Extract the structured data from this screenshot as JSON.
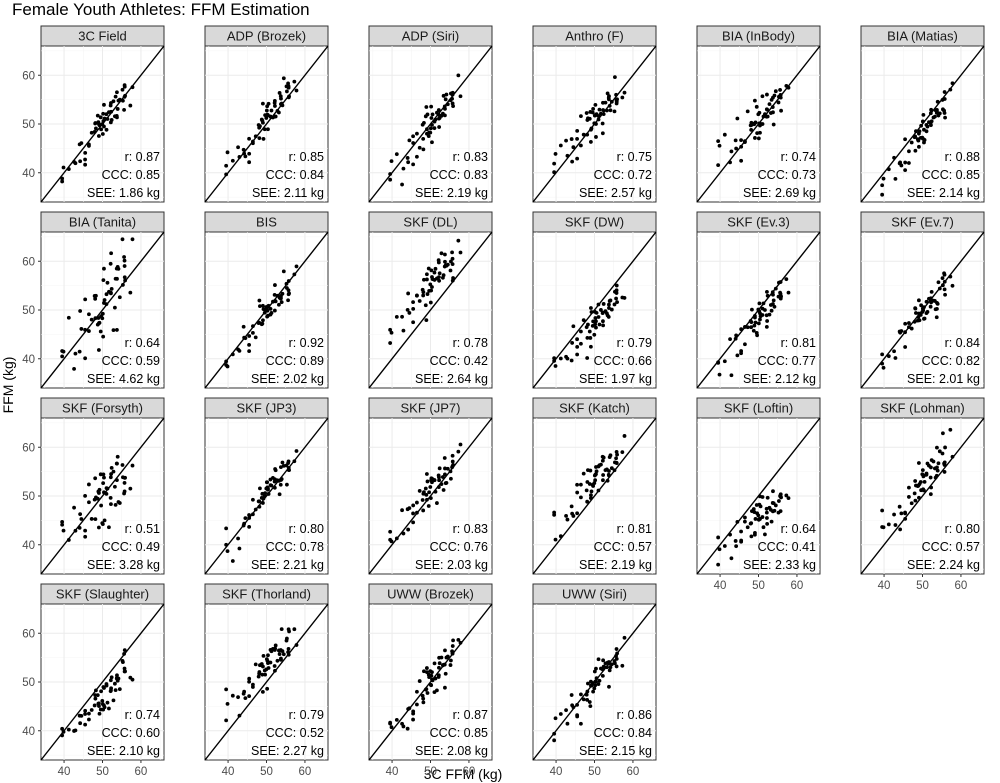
{
  "chart_data": {
    "type": "scatter",
    "title": "Female Youth Athletes: FFM Estimation",
    "xlabel": "3C FFM (kg)",
    "ylabel": "FFM (kg)",
    "xlim": [
      34,
      66
    ],
    "ylim": [
      34,
      66
    ],
    "xticks": [
      40,
      50,
      60
    ],
    "yticks": [
      40,
      50,
      60
    ],
    "grid": true,
    "reference_line": "identity",
    "panels": [
      {
        "label": "3C Field",
        "r": "r: 0.87",
        "ccc": "CCC: 0.85",
        "see": "SEE: 1.86 kg",
        "offset": 0.2,
        "noise": 1.9,
        "stretch": 1.0
      },
      {
        "label": "ADP (Brozek)",
        "r": "r: 0.85",
        "ccc": "CCC: 0.84",
        "see": "SEE: 2.11 kg",
        "offset": 0.8,
        "noise": 2.1,
        "stretch": 1.0
      },
      {
        "label": "ADP (Siri)",
        "r": "r: 0.83",
        "ccc": "CCC: 0.83",
        "see": "SEE: 2.19 kg",
        "offset": 0.3,
        "noise": 2.2,
        "stretch": 1.0
      },
      {
        "label": "Anthro (F)",
        "r": "r: 0.75",
        "ccc": "CCC: 0.72",
        "see": "SEE: 2.57 kg",
        "offset": 1.6,
        "noise": 2.6,
        "stretch": 0.85
      },
      {
        "label": "BIA (InBody)",
        "r": "r: 0.74",
        "ccc": "CCC: 0.73",
        "see": "SEE: 2.69 kg",
        "offset": 1.0,
        "noise": 2.7,
        "stretch": 0.8
      },
      {
        "label": "BIA (Matias)",
        "r": "r: 0.88",
        "ccc": "CCC: 0.85",
        "see": "SEE: 2.14 kg",
        "offset": -1.6,
        "noise": 2.0,
        "stretch": 1.05
      },
      {
        "label": "BIA (Tanita)",
        "r": "r: 0.64",
        "ccc": "CCC: 0.59",
        "see": "SEE: 4.62 kg",
        "offset": 2.0,
        "noise": 4.6,
        "stretch": 1.1
      },
      {
        "label": "BIS",
        "r": "r: 0.92",
        "ccc": "CCC: 0.89",
        "see": "SEE: 2.02 kg",
        "offset": -0.8,
        "noise": 2.0,
        "stretch": 1.05
      },
      {
        "label": "SKF (DL)",
        "r": "r: 0.78",
        "ccc": "CCC: 0.42",
        "see": "SEE: 2.64 kg",
        "offset": 5.5,
        "noise": 2.6,
        "stretch": 0.9
      },
      {
        "label": "SKF (DW)",
        "r": "r: 0.79",
        "ccc": "CCC: 0.66",
        "see": "SEE: 1.97 kg",
        "offset": -2.2,
        "noise": 2.0,
        "stretch": 0.85
      },
      {
        "label": "SKF (Ev.3)",
        "r": "r: 0.81",
        "ccc": "CCC: 0.77",
        "see": "SEE: 2.12 kg",
        "offset": -1.2,
        "noise": 2.1,
        "stretch": 0.95
      },
      {
        "label": "SKF (Ev.7)",
        "r": "r: 0.84",
        "ccc": "CCC: 0.82",
        "see": "SEE: 2.01 kg",
        "offset": -0.6,
        "noise": 2.0,
        "stretch": 0.95
      },
      {
        "label": "SKF (Forsyth)",
        "r": "r: 0.51",
        "ccc": "CCC: 0.49",
        "see": "SEE: 3.28 kg",
        "offset": 0.8,
        "noise": 3.3,
        "stretch": 0.7
      },
      {
        "label": "SKF (JP3)",
        "r": "r: 0.80",
        "ccc": "CCC: 0.78",
        "see": "SEE: 2.21 kg",
        "offset": 0.6,
        "noise": 2.2,
        "stretch": 0.9
      },
      {
        "label": "SKF (JP7)",
        "r": "r: 0.83",
        "ccc": "CCC: 0.76",
        "see": "SEE: 2.03 kg",
        "offset": 1.2,
        "noise": 2.0,
        "stretch": 0.9
      },
      {
        "label": "SKF (Katch)",
        "r": "r: 0.81",
        "ccc": "CCC: 0.57",
        "see": "SEE: 2.19 kg",
        "offset": 3.2,
        "noise": 2.2,
        "stretch": 0.9
      },
      {
        "label": "SKF (Loftin)",
        "r": "r: 0.64",
        "ccc": "CCC: 0.41",
        "see": "SEE: 2.33 kg",
        "offset": -3.5,
        "noise": 2.3,
        "stretch": 0.55
      },
      {
        "label": "SKF (Lohman)",
        "r": "r: 0.80",
        "ccc": "CCC: 0.57",
        "see": "SEE: 2.24 kg",
        "offset": 3.0,
        "noise": 2.2,
        "stretch": 0.9
      },
      {
        "label": "SKF (Slaughter)",
        "r": "r: 0.74",
        "ccc": "CCC: 0.60",
        "see": "SEE: 2.10 kg",
        "offset": -2.6,
        "noise": 2.1,
        "stretch": 0.8
      },
      {
        "label": "SKF (Thorland)",
        "r": "r: 0.79",
        "ccc": "CCC: 0.52",
        "see": "SEE: 2.27 kg",
        "offset": 3.6,
        "noise": 2.3,
        "stretch": 0.9
      },
      {
        "label": "UWW (Brozek)",
        "r": "r: 0.87",
        "ccc": "CCC: 0.85",
        "see": "SEE: 2.08 kg",
        "offset": 0.0,
        "noise": 2.1,
        "stretch": 1.0
      },
      {
        "label": "UWW (Siri)",
        "r": "r: 0.86",
        "ccc": "CCC: 0.84",
        "see": "SEE: 2.15 kg",
        "offset": -0.4,
        "noise": 2.1,
        "stretch": 1.0
      }
    ]
  }
}
